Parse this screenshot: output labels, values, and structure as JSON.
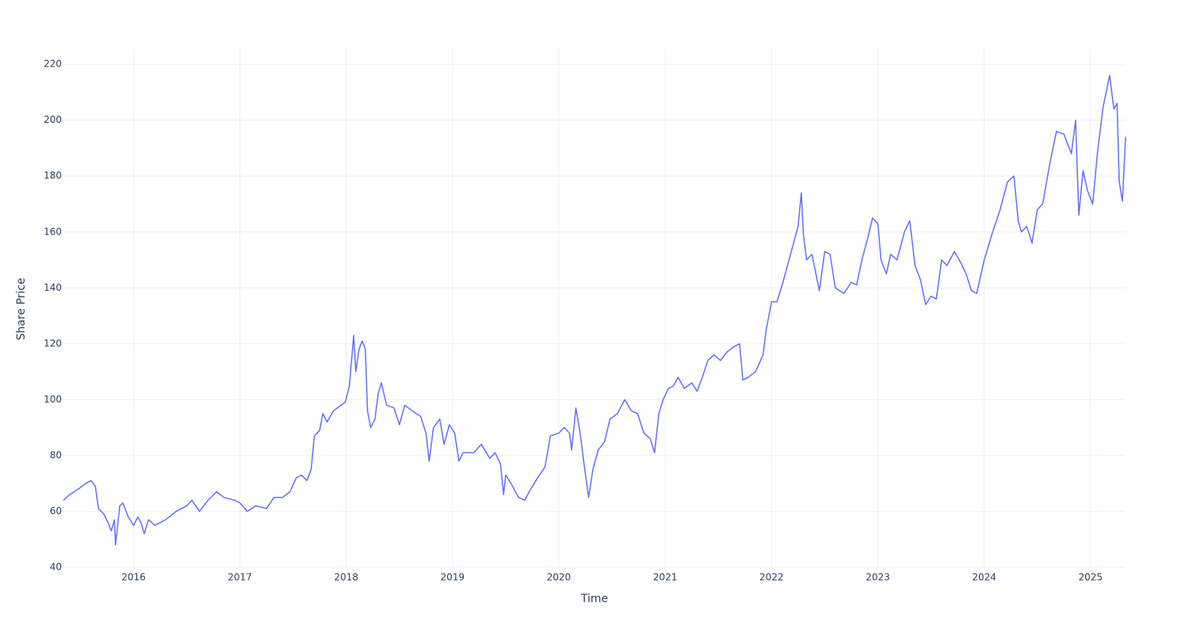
{
  "chart_data": {
    "type": "line",
    "xlabel": "Time",
    "ylabel": "Share Price",
    "x": [
      2015.34,
      2015.4,
      2015.48,
      2015.55,
      2015.6,
      2015.64,
      2015.67,
      2015.72,
      2015.76,
      2015.79,
      2015.82,
      2015.83,
      2015.87,
      2015.9,
      2015.95,
      2016.0,
      2016.04,
      2016.07,
      2016.1,
      2016.14,
      2016.2,
      2016.3,
      2016.4,
      2016.5,
      2016.55,
      2016.62,
      2016.7,
      2016.78,
      2016.85,
      2016.95,
      2017.0,
      2017.07,
      2017.15,
      2017.25,
      2017.32,
      2017.4,
      2017.47,
      2017.53,
      2017.58,
      2017.63,
      2017.67,
      2017.7,
      2017.75,
      2017.78,
      2017.82,
      2017.88,
      2017.95,
      2017.99,
      2018.03,
      2018.07,
      2018.09,
      2018.12,
      2018.15,
      2018.18,
      2018.2,
      2018.23,
      2018.27,
      2018.3,
      2018.33,
      2018.38,
      2018.45,
      2018.5,
      2018.55,
      2018.62,
      2018.7,
      2018.75,
      2018.78,
      2018.82,
      2018.88,
      2018.92,
      2018.97,
      2019.02,
      2019.06,
      2019.1,
      2019.2,
      2019.27,
      2019.35,
      2019.4,
      2019.45,
      2019.48,
      2019.5,
      2019.55,
      2019.62,
      2019.68,
      2019.72,
      2019.8,
      2019.87,
      2019.92,
      2020.0,
      2020.05,
      2020.1,
      2020.12,
      2020.16,
      2020.2,
      2020.24,
      2020.28,
      2020.32,
      2020.37,
      2020.43,
      2020.48,
      2020.55,
      2020.62,
      2020.68,
      2020.74,
      2020.8,
      2020.86,
      2020.9,
      2020.94,
      2020.98,
      2021.03,
      2021.08,
      2021.12,
      2021.18,
      2021.25,
      2021.3,
      2021.35,
      2021.4,
      2021.46,
      2021.52,
      2021.58,
      2021.65,
      2021.7,
      2021.73,
      2021.78,
      2021.85,
      2021.92,
      2021.95,
      2022.0,
      2022.05,
      2022.1,
      2022.15,
      2022.2,
      2022.25,
      2022.28,
      2022.3,
      2022.33,
      2022.38,
      2022.45,
      2022.5,
      2022.55,
      2022.6,
      2022.68,
      2022.75,
      2022.8,
      2022.85,
      2022.9,
      2022.95,
      2023.0,
      2023.03,
      2023.08,
      2023.12,
      2023.18,
      2023.25,
      2023.3,
      2023.35,
      2023.4,
      2023.45,
      2023.5,
      2023.55,
      2023.6,
      2023.65,
      2023.72,
      2023.78,
      2023.83,
      2023.88,
      2023.93,
      2024.0,
      2024.08,
      2024.15,
      2024.22,
      2024.28,
      2024.32,
      2024.35,
      2024.4,
      2024.45,
      2024.5,
      2024.55,
      2024.62,
      2024.68,
      2024.75,
      2024.82,
      2024.86,
      2024.89,
      2024.93,
      2024.97,
      2025.02,
      2025.07,
      2025.12,
      2025.18,
      2025.22,
      2025.25,
      2025.27,
      2025.3,
      2025.33
    ],
    "series": [
      {
        "color": "#636efa",
        "values": [
          64,
          66,
          68,
          70,
          71,
          69,
          61,
          59,
          56,
          53,
          57,
          48,
          62,
          63,
          58,
          55,
          58,
          56,
          52,
          57,
          55,
          57,
          60,
          62,
          64,
          60,
          64,
          67,
          65,
          64,
          63,
          60,
          62,
          61,
          65,
          65,
          67,
          72,
          73,
          71,
          75,
          87,
          89,
          95,
          92,
          96,
          98,
          99,
          105,
          123,
          110,
          118,
          121,
          118,
          96,
          90,
          93,
          102,
          106,
          98,
          97,
          91,
          98,
          96,
          94,
          88,
          78,
          90,
          93,
          84,
          91,
          88,
          78,
          81,
          81,
          84,
          79,
          81,
          77,
          66,
          73,
          70,
          65,
          64,
          67,
          72,
          76,
          87,
          88,
          90,
          88,
          82,
          97,
          88,
          76,
          65,
          75,
          82,
          85,
          93,
          95,
          100,
          96,
          95,
          88,
          86,
          81,
          95,
          100,
          104,
          105,
          108,
          104,
          106,
          103,
          108,
          114,
          116,
          114,
          117,
          119,
          120,
          107,
          108,
          110,
          116,
          125,
          135,
          135,
          141,
          148,
          155,
          162,
          174,
          159,
          150,
          152,
          139,
          153,
          152,
          140,
          138,
          142,
          141,
          150,
          157,
          165,
          163,
          150,
          145,
          152,
          150,
          160,
          164,
          148,
          143,
          134,
          137,
          136,
          150,
          148,
          153,
          149,
          145,
          139,
          138,
          150,
          160,
          168,
          178,
          180,
          164,
          160,
          162,
          156,
          168,
          170,
          185,
          196,
          195,
          188,
          200,
          166,
          182,
          175,
          170,
          190,
          205,
          216,
          204,
          206,
          178,
          171,
          194
        ]
      }
    ],
    "xlim": [
      2015.34,
      2025.33
    ],
    "ylim": [
      40,
      226
    ],
    "xticks": [
      2016,
      2017,
      2018,
      2019,
      2020,
      2021,
      2022,
      2023,
      2024,
      2025
    ],
    "yticks": [
      40,
      60,
      80,
      100,
      120,
      140,
      160,
      180,
      200,
      220
    ],
    "grid": true
  }
}
